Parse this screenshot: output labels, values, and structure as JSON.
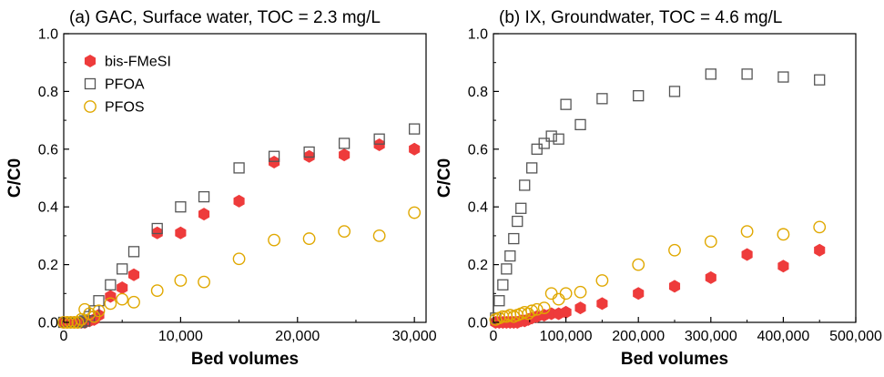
{
  "chart_data": [
    {
      "type": "scatter",
      "title": "(a) GAC, Surface water, TOC = 2.3 mg/L",
      "xlabel": "Bed volumes",
      "ylabel": "C/C0",
      "xlim": [
        0,
        31000
      ],
      "ylim": [
        0,
        1.0
      ],
      "xticks": [
        0,
        10000,
        20000,
        30000
      ],
      "xtick_labels": [
        "0",
        "10,000",
        "20,000",
        "30,000"
      ],
      "yticks": [
        0.0,
        0.2,
        0.4,
        0.6,
        0.8,
        1.0
      ],
      "ytick_labels": [
        "0.0",
        "0.2",
        "0.4",
        "0.6",
        "0.8",
        "1.0"
      ],
      "grid": false,
      "legend_position": "top-left",
      "series": [
        {
          "name": "bis-FMeSI",
          "marker": "filled-hexagon",
          "color": "#ee3b3b",
          "points": [
            [
              0,
              0
            ],
            [
              300,
              0
            ],
            [
              600,
              0
            ],
            [
              900,
              0
            ],
            [
              1200,
              0
            ],
            [
              1500,
              0
            ],
            [
              1800,
              0
            ],
            [
              2200,
              0.005
            ],
            [
              2600,
              0.01
            ],
            [
              3000,
              0.025
            ],
            [
              4000,
              0.09
            ],
            [
              5000,
              0.12
            ],
            [
              6000,
              0.165
            ],
            [
              8000,
              0.31
            ],
            [
              10000,
              0.31
            ],
            [
              12000,
              0.375
            ],
            [
              15000,
              0.42
            ],
            [
              18000,
              0.555
            ],
            [
              21000,
              0.575
            ],
            [
              24000,
              0.58
            ],
            [
              27000,
              0.615
            ],
            [
              30000,
              0.6
            ]
          ]
        },
        {
          "name": "PFOA",
          "marker": "open-square",
          "color": "#555555",
          "points": [
            [
              0,
              0
            ],
            [
              300,
              0
            ],
            [
              600,
              0
            ],
            [
              900,
              0
            ],
            [
              1200,
              0
            ],
            [
              1500,
              0
            ],
            [
              1800,
              0.005
            ],
            [
              2200,
              0.02
            ],
            [
              2600,
              0.04
            ],
            [
              3000,
              0.075
            ],
            [
              4000,
              0.13
            ],
            [
              5000,
              0.185
            ],
            [
              6000,
              0.245
            ],
            [
              8000,
              0.325
            ],
            [
              10000,
              0.4
            ],
            [
              12000,
              0.435
            ],
            [
              15000,
              0.535
            ],
            [
              18000,
              0.575
            ],
            [
              21000,
              0.59
            ],
            [
              24000,
              0.62
            ],
            [
              27000,
              0.635
            ],
            [
              30000,
              0.67
            ]
          ]
        },
        {
          "name": "PFOS",
          "marker": "open-circle",
          "color": "#e0a800",
          "points": [
            [
              0,
              0
            ],
            [
              300,
              0
            ],
            [
              600,
              0
            ],
            [
              900,
              0
            ],
            [
              1200,
              0
            ],
            [
              1500,
              0.01
            ],
            [
              1800,
              0.045
            ],
            [
              2200,
              0.03
            ],
            [
              2600,
              0.02
            ],
            [
              3000,
              0.04
            ],
            [
              4000,
              0.065
            ],
            [
              5000,
              0.08
            ],
            [
              6000,
              0.07
            ],
            [
              8000,
              0.11
            ],
            [
              10000,
              0.145
            ],
            [
              12000,
              0.14
            ],
            [
              15000,
              0.22
            ],
            [
              18000,
              0.285
            ],
            [
              21000,
              0.29
            ],
            [
              24000,
              0.315
            ],
            [
              27000,
              0.3
            ],
            [
              30000,
              0.38
            ]
          ]
        }
      ]
    },
    {
      "type": "scatter",
      "title": "(b) IX, Groundwater, TOC = 4.6 mg/L",
      "xlabel": "Bed volumes",
      "ylabel": "C/C0",
      "xlim": [
        0,
        500000
      ],
      "ylim": [
        0,
        1.0
      ],
      "xticks": [
        0,
        100000,
        200000,
        300000,
        400000,
        500000
      ],
      "xtick_labels": [
        "0",
        "100,000",
        "200,000",
        "300,000",
        "400,000",
        "500,000"
      ],
      "yticks": [
        0.0,
        0.2,
        0.4,
        0.6,
        0.8,
        1.0
      ],
      "ytick_labels": [
        "0.0",
        "0.2",
        "0.4",
        "0.6",
        "0.8",
        "1.0"
      ],
      "grid": false,
      "series": [
        {
          "name": "bis-FMeSI",
          "marker": "filled-hexagon",
          "color": "#ee3b3b",
          "points": [
            [
              3000,
              0
            ],
            [
              8000,
              0
            ],
            [
              13000,
              0
            ],
            [
              18000,
              0
            ],
            [
              23000,
              0
            ],
            [
              28000,
              0
            ],
            [
              33000,
              0
            ],
            [
              38000,
              0.005
            ],
            [
              43000,
              0.005
            ],
            [
              48000,
              0.01
            ],
            [
              53000,
              0.015
            ],
            [
              60000,
              0.02
            ],
            [
              70000,
              0.025
            ],
            [
              80000,
              0.03
            ],
            [
              90000,
              0.03
            ],
            [
              100000,
              0.035
            ],
            [
              120000,
              0.05
            ],
            [
              150000,
              0.065
            ],
            [
              200000,
              0.1
            ],
            [
              250000,
              0.125
            ],
            [
              300000,
              0.155
            ],
            [
              350000,
              0.235
            ],
            [
              400000,
              0.195
            ],
            [
              450000,
              0.25
            ]
          ]
        },
        {
          "name": "PFOA",
          "marker": "open-square",
          "color": "#555555",
          "points": [
            [
              3000,
              0.015
            ],
            [
              8000,
              0.075
            ],
            [
              13000,
              0.13
            ],
            [
              18000,
              0.185
            ],
            [
              23000,
              0.23
            ],
            [
              28000,
              0.29
            ],
            [
              33000,
              0.35
            ],
            [
              38000,
              0.395
            ],
            [
              43000,
              0.475
            ],
            [
              53000,
              0.535
            ],
            [
              60000,
              0.6
            ],
            [
              70000,
              0.62
            ],
            [
              80000,
              0.645
            ],
            [
              90000,
              0.635
            ],
            [
              100000,
              0.755
            ],
            [
              120000,
              0.685
            ],
            [
              150000,
              0.775
            ],
            [
              200000,
              0.785
            ],
            [
              250000,
              0.8
            ],
            [
              300000,
              0.86
            ],
            [
              350000,
              0.86
            ],
            [
              400000,
              0.85
            ],
            [
              450000,
              0.84
            ]
          ]
        },
        {
          "name": "PFOS",
          "marker": "open-circle",
          "color": "#e0a800",
          "points": [
            [
              3000,
              0.01
            ],
            [
              8000,
              0.015
            ],
            [
              13000,
              0.02
            ],
            [
              18000,
              0.02
            ],
            [
              23000,
              0.025
            ],
            [
              28000,
              0.02
            ],
            [
              33000,
              0.025
            ],
            [
              38000,
              0.03
            ],
            [
              43000,
              0.035
            ],
            [
              48000,
              0.03
            ],
            [
              53000,
              0.04
            ],
            [
              60000,
              0.045
            ],
            [
              70000,
              0.05
            ],
            [
              80000,
              0.1
            ],
            [
              90000,
              0.08
            ],
            [
              100000,
              0.1
            ],
            [
              120000,
              0.105
            ],
            [
              150000,
              0.145
            ],
            [
              200000,
              0.2
            ],
            [
              250000,
              0.25
            ],
            [
              300000,
              0.28
            ],
            [
              350000,
              0.315
            ],
            [
              400000,
              0.305
            ],
            [
              450000,
              0.33
            ]
          ]
        }
      ]
    }
  ]
}
